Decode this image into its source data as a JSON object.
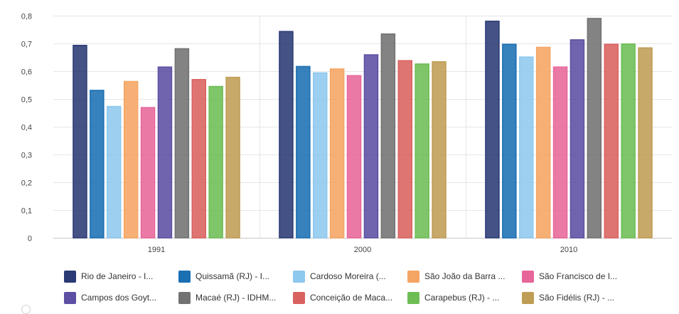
{
  "chart_data": {
    "type": "bar",
    "categories": [
      "1991",
      "2000",
      "2010"
    ],
    "ylim": [
      0,
      0.8
    ],
    "yticks": [
      "0",
      "0,1",
      "0,2",
      "0,3",
      "0,4",
      "0,5",
      "0,6",
      "0,7",
      "0,8"
    ],
    "grid": true,
    "legend_position": "bottom",
    "series": [
      {
        "name": "Rio de Janeiro - I...",
        "color": "#2b3a74",
        "values": [
          0.693,
          0.743,
          0.78
        ]
      },
      {
        "name": "Quissamã (RJ) - I...",
        "color": "#1b6fb3",
        "values": [
          0.531,
          0.617,
          0.697
        ]
      },
      {
        "name": "Cardoso Moreira (...",
        "color": "#8ec8ee",
        "values": [
          0.473,
          0.594,
          0.651
        ]
      },
      {
        "name": "São João da Barra ...",
        "color": "#f5a563",
        "values": [
          0.563,
          0.608,
          0.686
        ]
      },
      {
        "name": "São Francisco de I...",
        "color": "#e7669a",
        "values": [
          0.469,
          0.584,
          0.615
        ]
      },
      {
        "name": "Campos dos Goyt...",
        "color": "#5d4fa3",
        "values": [
          0.615,
          0.659,
          0.713
        ]
      },
      {
        "name": "Macaé (RJ) - IDHM...",
        "color": "#727272",
        "values": [
          0.681,
          0.734,
          0.79
        ]
      },
      {
        "name": "Conceição de Maca...",
        "color": "#d9625f",
        "values": [
          0.57,
          0.638,
          0.697
        ]
      },
      {
        "name": "Carapebus (RJ) - ...",
        "color": "#6dbd55",
        "values": [
          0.545,
          0.626,
          0.698
        ]
      },
      {
        "name": "São Fidélis (RJ) - ...",
        "color": "#bf9d55",
        "values": [
          0.578,
          0.634,
          0.684
        ]
      }
    ]
  }
}
